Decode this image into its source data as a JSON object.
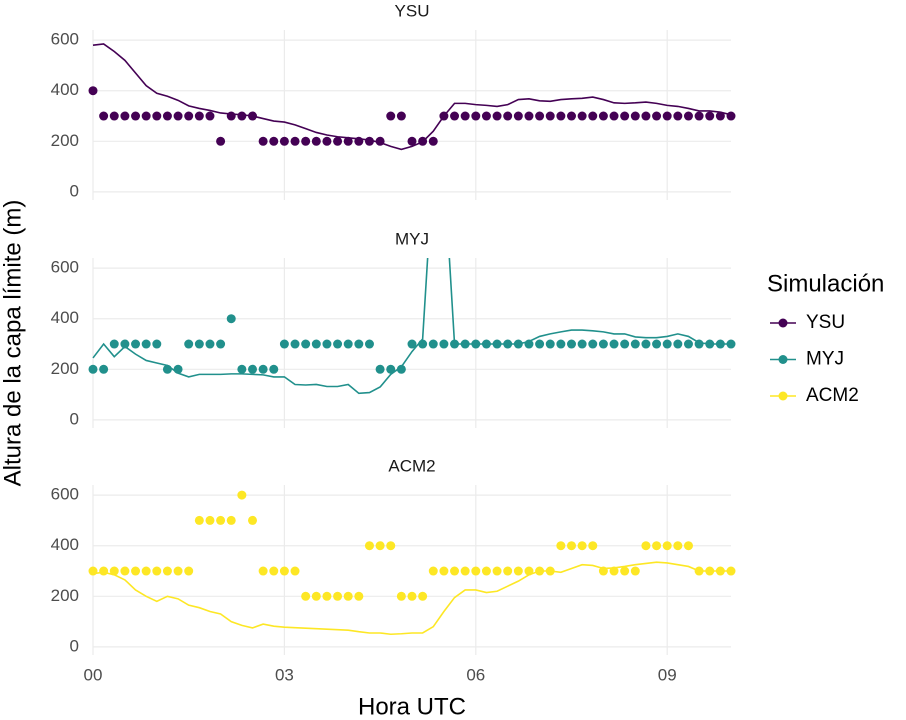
{
  "chart_data": {
    "type": "line",
    "x_label": "Hora UTC",
    "y_label": "Altura de la capa límite (m)",
    "legend_title": "Simulación",
    "x": [
      0,
      10,
      20,
      30,
      40,
      50,
      60,
      70,
      80,
      90,
      100,
      110,
      120,
      130,
      140,
      150,
      160,
      170,
      180,
      190,
      200,
      210,
      220,
      230,
      240,
      250,
      260,
      270,
      280,
      290,
      300,
      310,
      320,
      330,
      340,
      350,
      360,
      370,
      380,
      390,
      400,
      410,
      420,
      430,
      440,
      450,
      460,
      470,
      480,
      490,
      500,
      510,
      520,
      530,
      540,
      550,
      560,
      570,
      580,
      590,
      600
    ],
    "xlim": [
      0,
      600
    ],
    "xticks": [
      {
        "value": 0,
        "label": "00"
      },
      {
        "value": 180,
        "label": "03"
      },
      {
        "value": 360,
        "label": "06"
      },
      {
        "value": 540,
        "label": "09"
      }
    ],
    "grid": true,
    "series": [
      {
        "name": "YSU",
        "color": "#440154",
        "ylim": [
          -32,
          640
        ],
        "yticks": [
          0,
          200,
          400,
          600
        ],
        "values": [
          580,
          585,
          555,
          520,
          470,
          420,
          390,
          378,
          362,
          340,
          330,
          322,
          312,
          308,
          305,
          300,
          290,
          280,
          276,
          265,
          250,
          235,
          225,
          218,
          214,
          210,
          205,
          195,
          180,
          168,
          180,
          198,
          240,
          300,
          350,
          350,
          345,
          342,
          338,
          345,
          365,
          368,
          360,
          358,
          365,
          368,
          370,
          375,
          365,
          352,
          350,
          352,
          355,
          350,
          342,
          338,
          330,
          320,
          320,
          315,
          305
        ],
        "points": [
          400,
          300,
          300,
          300,
          300,
          300,
          300,
          300,
          300,
          300,
          300,
          300,
          200,
          300,
          300,
          300,
          200,
          200,
          200,
          200,
          200,
          200,
          200,
          200,
          200,
          200,
          200,
          200,
          300,
          300,
          200,
          200,
          200,
          300,
          300,
          300,
          300,
          300,
          300,
          300,
          300,
          300,
          300,
          300,
          300,
          300,
          300,
          300,
          300,
          300,
          300,
          300,
          300,
          300,
          300,
          300,
          300,
          300,
          300,
          300,
          300
        ]
      },
      {
        "name": "MYJ",
        "color": "#21908C",
        "ylim": [
          -32,
          640
        ],
        "yticks": [
          0,
          200,
          400,
          600
        ],
        "values": [
          245,
          300,
          250,
          290,
          260,
          235,
          225,
          215,
          185,
          170,
          180,
          180,
          180,
          182,
          182,
          180,
          178,
          170,
          170,
          140,
          138,
          140,
          132,
          132,
          140,
          105,
          108,
          130,
          180,
          210,
          270,
          320,
          1000,
          1000,
          300,
          300,
          300,
          300,
          300,
          300,
          300,
          310,
          330,
          340,
          348,
          355,
          355,
          352,
          348,
          340,
          340,
          328,
          325,
          325,
          330,
          340,
          330,
          305,
          300,
          300,
          300
        ],
        "points": [
          200,
          200,
          300,
          300,
          300,
          300,
          300,
          200,
          200,
          300,
          300,
          300,
          300,
          400,
          200,
          200,
          200,
          200,
          300,
          300,
          300,
          300,
          300,
          300,
          300,
          300,
          300,
          200,
          200,
          200,
          300,
          300,
          300,
          300,
          300,
          300,
          300,
          300,
          300,
          300,
          300,
          300,
          300,
          300,
          300,
          300,
          300,
          300,
          300,
          300,
          300,
          300,
          300,
          300,
          300,
          300,
          300,
          300,
          300,
          300,
          300
        ]
      },
      {
        "name": "ACM2",
        "color": "#FDE725",
        "ylim": [
          -32,
          640
        ],
        "yticks": [
          0,
          200,
          400,
          600
        ],
        "values": [
          290,
          295,
          285,
          265,
          225,
          200,
          180,
          200,
          190,
          165,
          155,
          140,
          130,
          100,
          85,
          75,
          90,
          82,
          78,
          76,
          74,
          72,
          70,
          68,
          66,
          60,
          55,
          55,
          50,
          52,
          55,
          55,
          80,
          140,
          195,
          225,
          225,
          215,
          220,
          240,
          260,
          285,
          300,
          300,
          295,
          310,
          325,
          322,
          310,
          312,
          318,
          325,
          330,
          335,
          332,
          325,
          318,
          300,
          300,
          300,
          300
        ],
        "points": [
          300,
          300,
          300,
          300,
          300,
          300,
          300,
          300,
          300,
          300,
          500,
          500,
          500,
          500,
          600,
          500,
          300,
          300,
          300,
          300,
          200,
          200,
          200,
          200,
          200,
          200,
          400,
          400,
          400,
          200,
          200,
          200,
          300,
          300,
          300,
          300,
          300,
          300,
          300,
          300,
          300,
          300,
          300,
          300,
          400,
          400,
          400,
          400,
          300,
          300,
          300,
          300,
          400,
          400,
          400,
          400,
          400,
          300,
          300,
          300,
          300
        ]
      }
    ]
  }
}
